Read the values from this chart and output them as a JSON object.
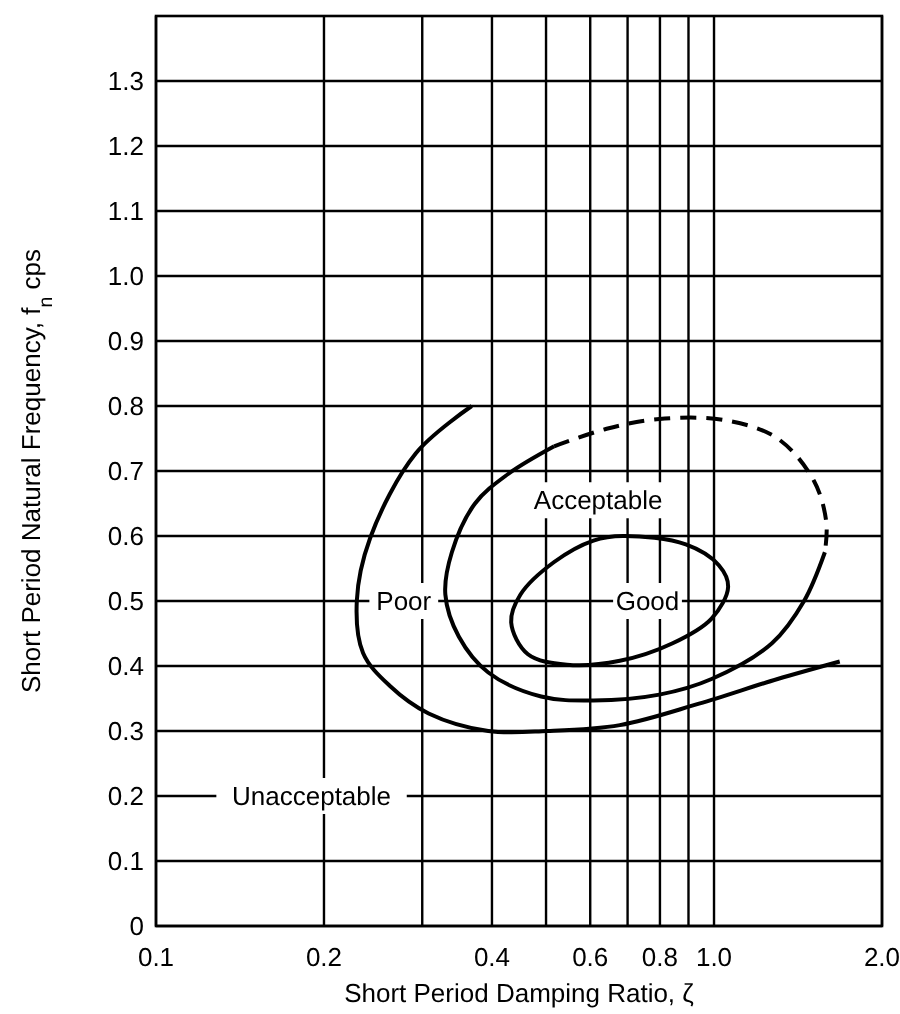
{
  "chart_data": {
    "type": "line",
    "xlabel": "Short Period Damping Ratio, ζ",
    "ylabel": "Short Period Natural Frequency, f$_{n}$ cps",
    "log": "x",
    "grid": true,
    "marker": "none",
    "xlim": [
      0.1,
      2
    ],
    "ylim": [
      0,
      1.4
    ],
    "xticks": [
      0.1,
      0.2,
      {
        "value": 0.3,
        "label": null
      },
      0.4,
      {
        "value": 0.5,
        "label": null
      },
      0.6,
      {
        "value": 0.7,
        "label": null
      },
      0.8,
      {
        "value": 0.9,
        "label": null
      },
      {
        "value": 1,
        "label": "1.0"
      },
      {
        "value": 2,
        "label": "2.0"
      }
    ],
    "yticks": [
      0,
      0.1,
      0.2,
      0.3,
      0.4,
      0.5,
      0.6,
      0.7,
      0.8,
      0.9,
      {
        "value": 1,
        "label": "1.0"
      },
      1.1,
      1.2,
      1.3
    ],
    "series": [
      {
        "color": "#000000",
        "line_style": "solid",
        "x": [
          0.368,
          0.292,
          0.242,
          0.229,
          0.235,
          0.262,
          0.308,
          0.394,
          0.503,
          0.678,
          0.94,
          1.3,
          1.68
        ],
        "values": [
          0.8,
          0.727,
          0.597,
          0.5,
          0.42,
          0.37,
          0.327,
          0.3,
          0.3,
          0.309,
          0.342,
          0.38,
          0.407
        ]
      },
      {
        "color": "#000000",
        "line_style": "solid",
        "x": [
          1.58,
          1.45,
          1.27,
          0.99,
          0.798,
          0.608,
          0.49,
          0.394,
          0.349,
          0.33,
          0.339,
          0.373,
          0.427,
          0.517
        ],
        "values": [
          0.575,
          0.5,
          0.435,
          0.38,
          0.356,
          0.347,
          0.353,
          0.39,
          0.445,
          0.51,
          0.575,
          0.65,
          0.695,
          0.738
        ]
      },
      {
        "color": "#000000",
        "line_style": "dashed",
        "x": [
          0.517,
          0.642,
          0.798,
          1.05,
          1.3,
          1.51,
          1.59,
          1.58
        ],
        "values": [
          0.738,
          0.765,
          0.78,
          0.778,
          0.75,
          0.685,
          0.62,
          0.575
        ]
      }
    ],
    "annotations": [
      "Acceptable",
      "Poor",
      "Good",
      "Unacceptable"
    ]
  }
}
